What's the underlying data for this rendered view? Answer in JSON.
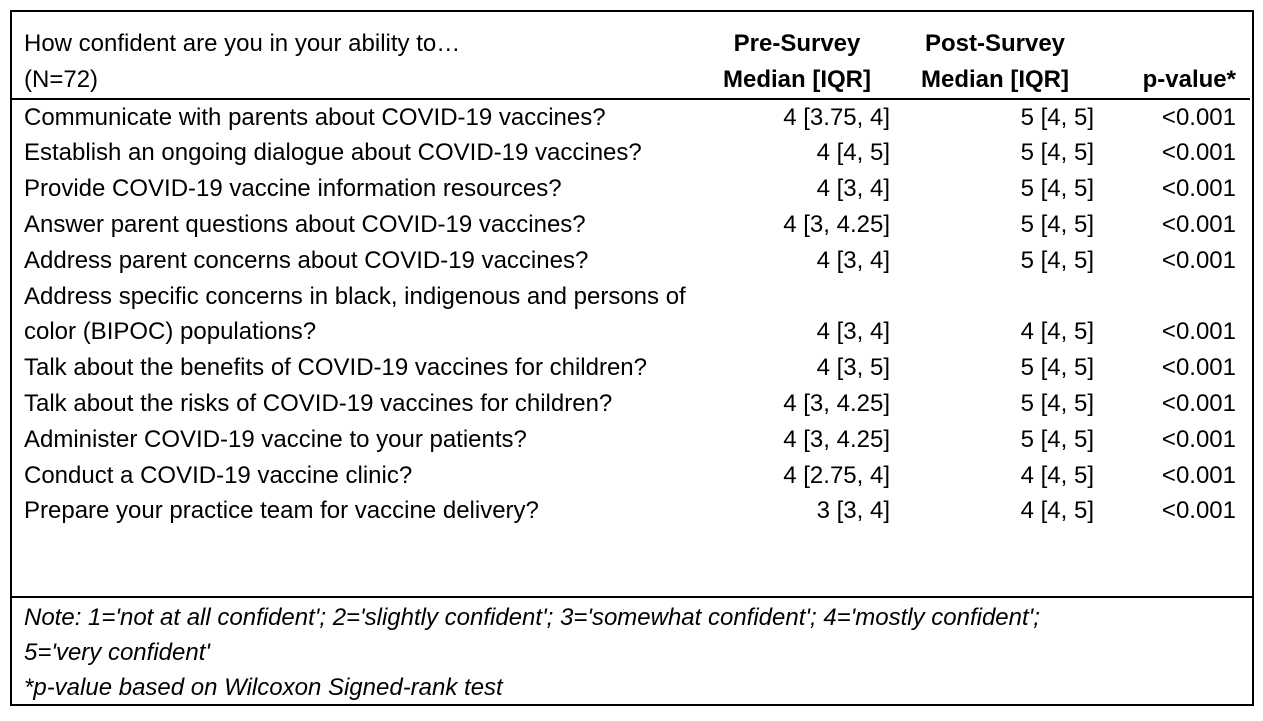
{
  "header": {
    "question_line1": "How confident are you in your ability to…",
    "question_line2": "(N=72)",
    "pre_line1": "Pre-Survey",
    "pre_line2": "Median [IQR]",
    "post_line1": "Post-Survey",
    "post_line2": "Median [IQR]",
    "pvalue": "p-value*"
  },
  "rows": [
    {
      "question": "Communicate with parents about COVID-19 vaccines?",
      "pre": "4 [3.75, 4]",
      "post": "5 [4, 5]",
      "p": "<0.001"
    },
    {
      "question": "Establish an ongoing dialogue about COVID-19 vaccines?",
      "pre": "4 [4, 5]",
      "post": "5 [4, 5]",
      "p": "<0.001"
    },
    {
      "question": "Provide COVID-19 vaccine information resources?",
      "pre": "4 [3, 4]",
      "post": "5 [4, 5]",
      "p": "<0.001"
    },
    {
      "question": "Answer parent questions about COVID-19 vaccines?",
      "pre": "4 [3, 4.25]",
      "post": "5 [4, 5]",
      "p": "<0.001"
    },
    {
      "question": "Address parent concerns about COVID-19 vaccines?",
      "pre": "4 [3, 4]",
      "post": "5 [4, 5]",
      "p": "<0.001"
    },
    {
      "question": "Address specific concerns in black, indigenous and persons of color (BIPOC) populations?",
      "pre": "4 [3, 4]",
      "post": "4 [4, 5]",
      "p": "<0.001"
    },
    {
      "question": "Talk about the benefits of COVID-19 vaccines for children?",
      "pre": "4 [3, 5]",
      "post": "5 [4, 5]",
      "p": "<0.001"
    },
    {
      "question": "Talk about the risks of COVID-19 vaccines for children?",
      "pre": "4 [3, 4.25]",
      "post": "5 [4, 5]",
      "p": "<0.001"
    },
    {
      "question": "Administer COVID-19 vaccine to your patients?",
      "pre": "4 [3, 4.25]",
      "post": "5 [4, 5]",
      "p": "<0.001"
    },
    {
      "question": "Conduct a COVID-19 vaccine clinic?",
      "pre": "4 [2.75, 4]",
      "post": "4 [4, 5]",
      "p": "<0.001"
    },
    {
      "question": "Prepare your practice team for vaccine delivery?",
      "pre": "3 [3, 4]",
      "post": "4 [4, 5]",
      "p": "<0.001"
    }
  ],
  "note": {
    "line1": "Note: 1='not at all confident'; 2='slightly confident'; 3='somewhat confident'; 4='mostly confident';",
    "line2": "5='very confident'",
    "line3": "*p-value based on Wilcoxon Signed-rank test"
  }
}
